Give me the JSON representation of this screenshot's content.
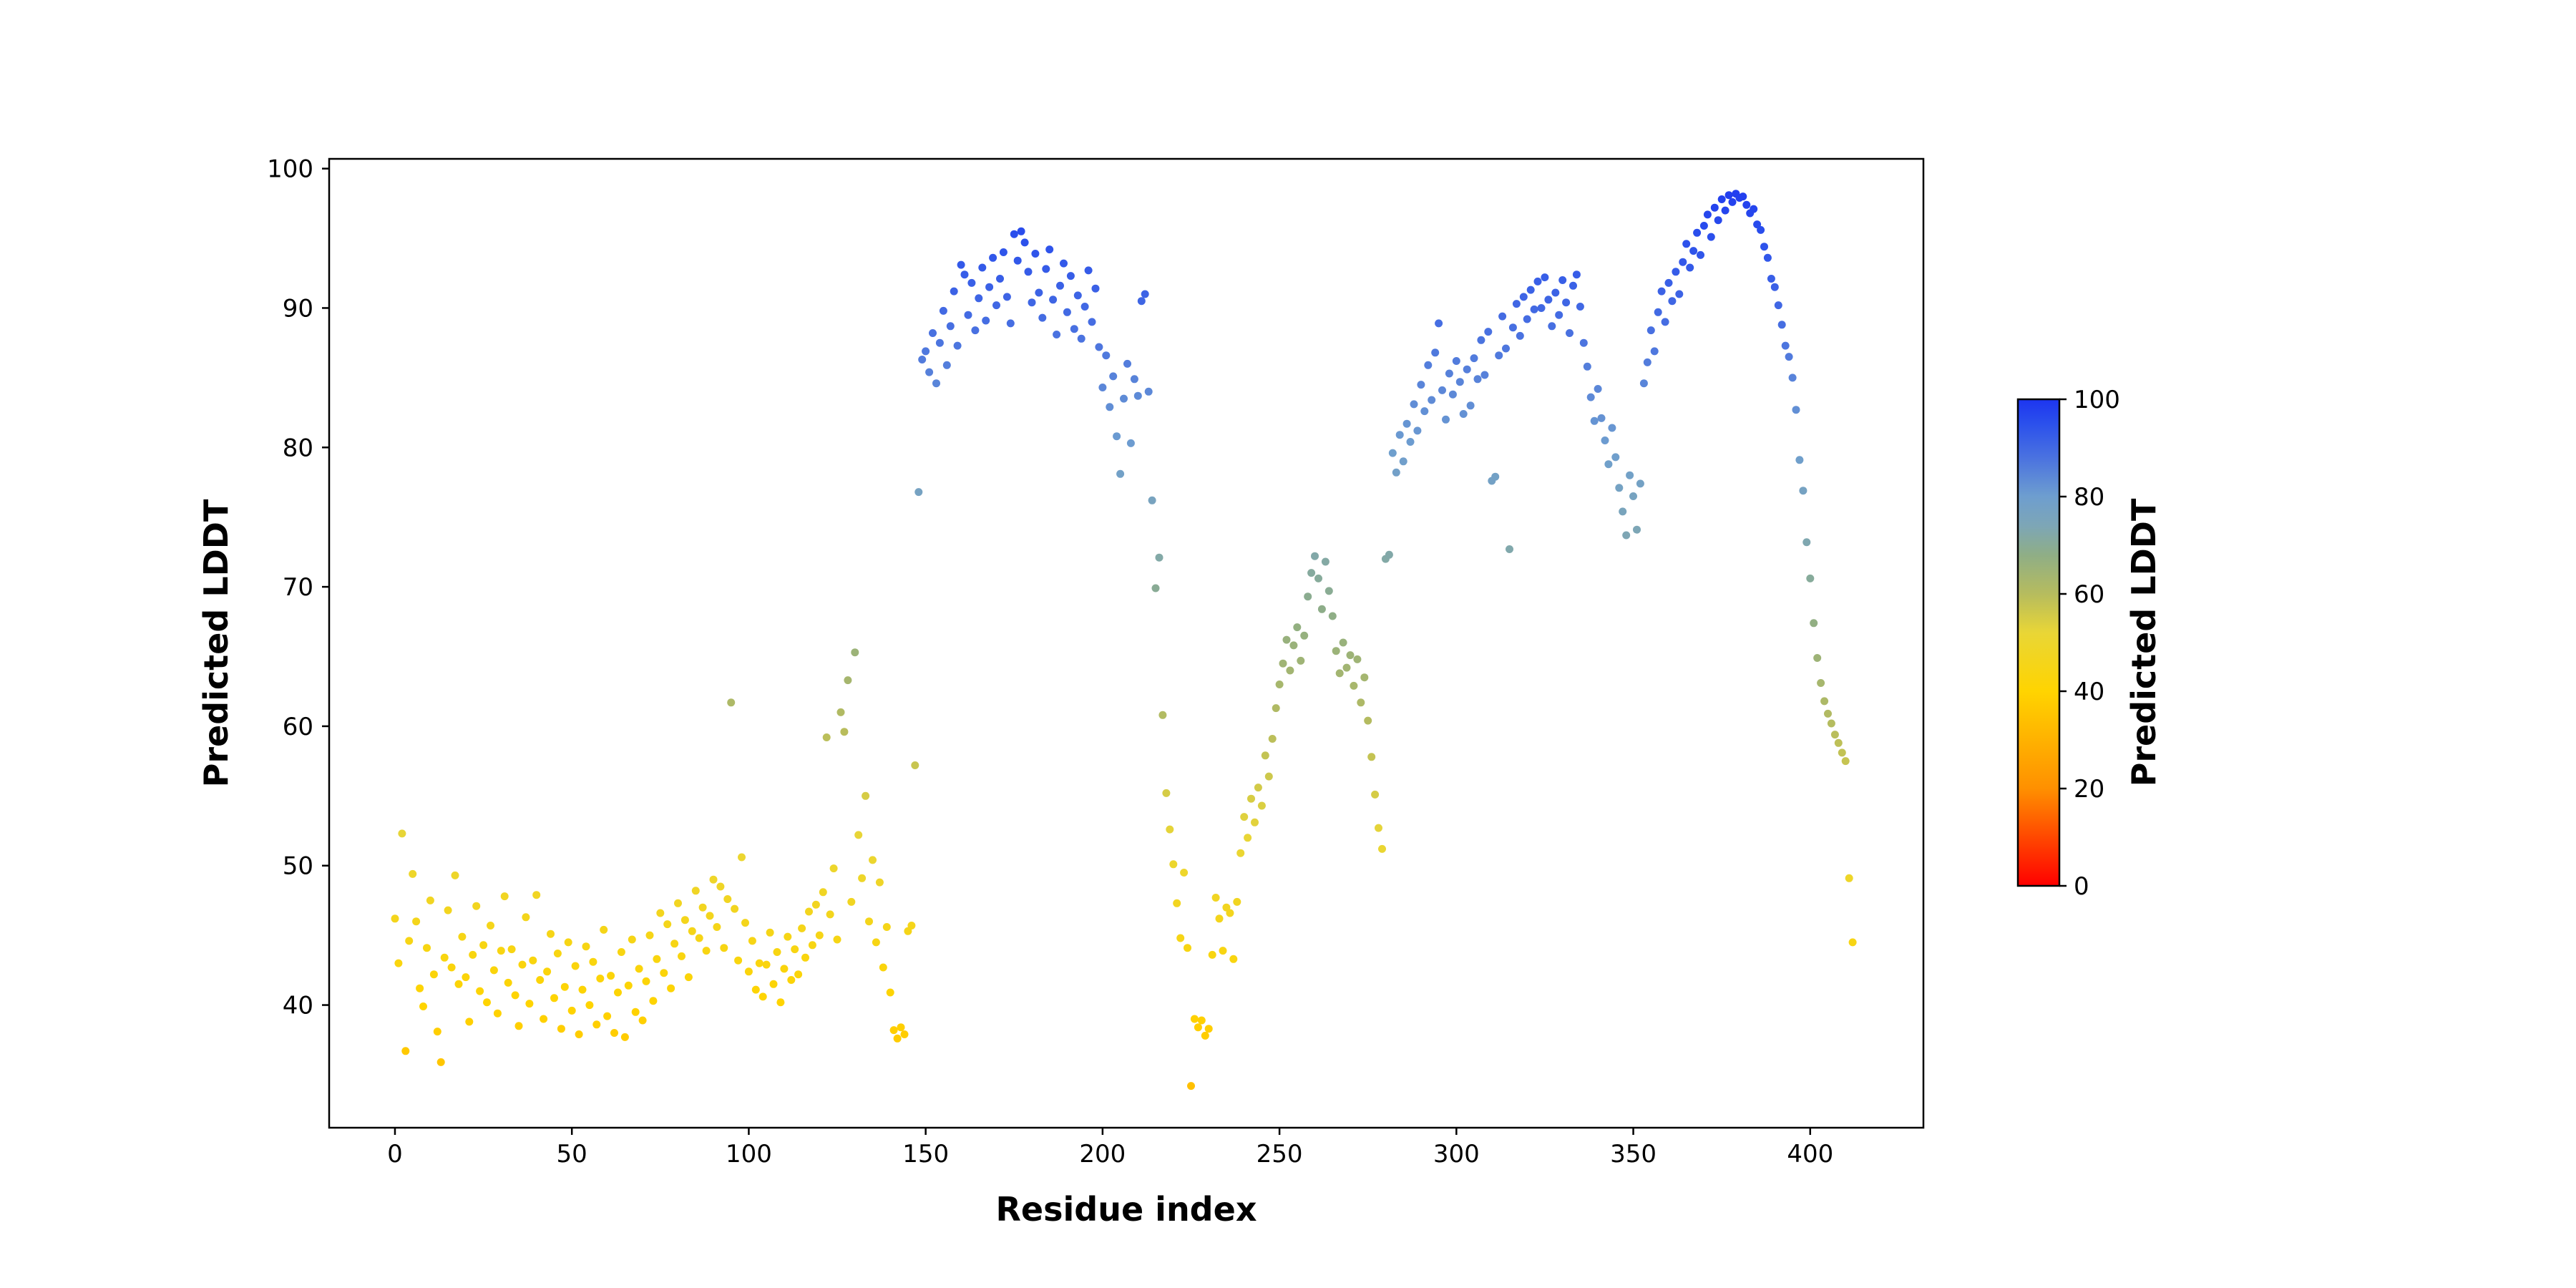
{
  "figure": {
    "background": "#ffffff"
  },
  "chart_data": {
    "type": "scatter",
    "title": "",
    "xlabel": "Residue index",
    "ylabel": "Predicted LDDT",
    "xlim": [
      -18.6,
      432.0
    ],
    "ylim": [
      31.2,
      100.7
    ],
    "xticks": [
      0,
      50,
      100,
      150,
      200,
      250,
      300,
      350,
      400
    ],
    "yticks": [
      40,
      50,
      60,
      70,
      80,
      90,
      100
    ],
    "grid": false,
    "legend": "none",
    "marker_radius": 5.5,
    "colorbar": {
      "label": "Predicted LDDT",
      "min": 0,
      "max": 100,
      "ticks": [
        0,
        20,
        40,
        60,
        80,
        100
      ],
      "stops": [
        [
          0,
          "#ff0000"
        ],
        [
          20,
          "#ff9000"
        ],
        [
          40,
          "#ffd400"
        ],
        [
          52,
          "#e9d636"
        ],
        [
          60,
          "#b6bc5e"
        ],
        [
          68,
          "#8fae86"
        ],
        [
          74,
          "#7da6b6"
        ],
        [
          80,
          "#6e9ecf"
        ],
        [
          88,
          "#4a72e0"
        ],
        [
          95,
          "#2b50ec"
        ],
        [
          100,
          "#1d35f0"
        ]
      ]
    },
    "points": [
      [
        0,
        46.2
      ],
      [
        1,
        43.0
      ],
      [
        2,
        52.3
      ],
      [
        3,
        36.7
      ],
      [
        4,
        44.6
      ],
      [
        5,
        49.4
      ],
      [
        6,
        46.0
      ],
      [
        7,
        41.2
      ],
      [
        8,
        39.9
      ],
      [
        9,
        44.1
      ],
      [
        10,
        47.5
      ],
      [
        11,
        42.2
      ],
      [
        12,
        38.1
      ],
      [
        13,
        35.9
      ],
      [
        14,
        43.4
      ],
      [
        15,
        46.8
      ],
      [
        16,
        42.7
      ],
      [
        17,
        49.3
      ],
      [
        18,
        41.5
      ],
      [
        19,
        44.9
      ],
      [
        20,
        42.0
      ],
      [
        21,
        38.8
      ],
      [
        22,
        43.6
      ],
      [
        23,
        47.1
      ],
      [
        24,
        41.0
      ],
      [
        25,
        44.3
      ],
      [
        26,
        40.2
      ],
      [
        27,
        45.7
      ],
      [
        28,
        42.5
      ],
      [
        29,
        39.4
      ],
      [
        30,
        43.9
      ],
      [
        31,
        47.8
      ],
      [
        32,
        41.6
      ],
      [
        33,
        44.0
      ],
      [
        34,
        40.7
      ],
      [
        35,
        38.5
      ],
      [
        36,
        42.9
      ],
      [
        37,
        46.3
      ],
      [
        38,
        40.1
      ],
      [
        39,
        43.2
      ],
      [
        40,
        47.9
      ],
      [
        41,
        41.8
      ],
      [
        42,
        39.0
      ],
      [
        43,
        42.4
      ],
      [
        44,
        45.1
      ],
      [
        45,
        40.5
      ],
      [
        46,
        43.7
      ],
      [
        47,
        38.3
      ],
      [
        48,
        41.3
      ],
      [
        49,
        44.5
      ],
      [
        50,
        39.6
      ],
      [
        51,
        42.8
      ],
      [
        52,
        37.9
      ],
      [
        53,
        41.1
      ],
      [
        54,
        44.2
      ],
      [
        55,
        40.0
      ],
      [
        56,
        43.1
      ],
      [
        57,
        38.6
      ],
      [
        58,
        41.9
      ],
      [
        59,
        45.4
      ],
      [
        60,
        39.2
      ],
      [
        61,
        42.1
      ],
      [
        62,
        38.0
      ],
      [
        63,
        40.9
      ],
      [
        64,
        43.8
      ],
      [
        65,
        37.7
      ],
      [
        66,
        41.4
      ],
      [
        67,
        44.7
      ],
      [
        68,
        39.5
      ],
      [
        69,
        42.6
      ],
      [
        70,
        38.9
      ],
      [
        71,
        41.7
      ],
      [
        72,
        45.0
      ],
      [
        73,
        40.3
      ],
      [
        74,
        43.3
      ],
      [
        75,
        46.6
      ],
      [
        76,
        42.3
      ],
      [
        77,
        45.8
      ],
      [
        78,
        41.2
      ],
      [
        79,
        44.4
      ],
      [
        80,
        47.3
      ],
      [
        81,
        43.5
      ],
      [
        82,
        46.1
      ],
      [
        83,
        42.0
      ],
      [
        84,
        45.3
      ],
      [
        85,
        48.2
      ],
      [
        86,
        44.8
      ],
      [
        87,
        47.0
      ],
      [
        88,
        43.9
      ],
      [
        89,
        46.4
      ],
      [
        90,
        49.0
      ],
      [
        91,
        45.6
      ],
      [
        92,
        48.5
      ],
      [
        93,
        44.1
      ],
      [
        94,
        47.6
      ],
      [
        95,
        61.7
      ],
      [
        96,
        46.9
      ],
      [
        97,
        43.2
      ],
      [
        98,
        50.6
      ],
      [
        99,
        45.9
      ],
      [
        100,
        42.4
      ],
      [
        101,
        44.6
      ],
      [
        102,
        41.1
      ],
      [
        103,
        43.0
      ],
      [
        104,
        40.6
      ],
      [
        105,
        42.9
      ],
      [
        106,
        45.2
      ],
      [
        107,
        41.5
      ],
      [
        108,
        43.8
      ],
      [
        109,
        40.2
      ],
      [
        110,
        42.6
      ],
      [
        111,
        44.9
      ],
      [
        112,
        41.8
      ],
      [
        113,
        44.0
      ],
      [
        114,
        42.2
      ],
      [
        115,
        45.5
      ],
      [
        116,
        43.4
      ],
      [
        117,
        46.7
      ],
      [
        118,
        44.3
      ],
      [
        119,
        47.2
      ],
      [
        120,
        45.0
      ],
      [
        121,
        48.1
      ],
      [
        122,
        59.2
      ],
      [
        123,
        46.5
      ],
      [
        124,
        49.8
      ],
      [
        125,
        44.7
      ],
      [
        126,
        61.0
      ],
      [
        127,
        59.6
      ],
      [
        128,
        63.3
      ],
      [
        129,
        47.4
      ],
      [
        130,
        65.3
      ],
      [
        131,
        52.2
      ],
      [
        132,
        49.1
      ],
      [
        133,
        55.0
      ],
      [
        134,
        46.0
      ],
      [
        135,
        50.4
      ],
      [
        136,
        44.5
      ],
      [
        137,
        48.8
      ],
      [
        138,
        42.7
      ],
      [
        139,
        45.6
      ],
      [
        140,
        40.9
      ],
      [
        141,
        38.2
      ],
      [
        142,
        37.6
      ],
      [
        143,
        38.4
      ],
      [
        144,
        37.9
      ],
      [
        145,
        45.3
      ],
      [
        146,
        45.7
      ],
      [
        147,
        57.2
      ],
      [
        148,
        76.8
      ],
      [
        149,
        86.3
      ],
      [
        150,
        86.9
      ],
      [
        151,
        85.4
      ],
      [
        152,
        88.2
      ],
      [
        153,
        84.6
      ],
      [
        154,
        87.5
      ],
      [
        155,
        89.8
      ],
      [
        156,
        85.9
      ],
      [
        157,
        88.7
      ],
      [
        158,
        91.2
      ],
      [
        159,
        87.3
      ],
      [
        160,
        93.1
      ],
      [
        161,
        92.4
      ],
      [
        162,
        89.5
      ],
      [
        163,
        91.8
      ],
      [
        164,
        88.4
      ],
      [
        165,
        90.7
      ],
      [
        166,
        92.9
      ],
      [
        167,
        89.1
      ],
      [
        168,
        91.5
      ],
      [
        169,
        93.6
      ],
      [
        170,
        90.2
      ],
      [
        171,
        92.1
      ],
      [
        172,
        94.0
      ],
      [
        173,
        90.8
      ],
      [
        174,
        88.9
      ],
      [
        175,
        95.3
      ],
      [
        176,
        93.4
      ],
      [
        177,
        95.5
      ],
      [
        178,
        94.7
      ],
      [
        179,
        92.6
      ],
      [
        180,
        90.4
      ],
      [
        181,
        93.9
      ],
      [
        182,
        91.1
      ],
      [
        183,
        89.3
      ],
      [
        184,
        92.8
      ],
      [
        185,
        94.2
      ],
      [
        186,
        90.6
      ],
      [
        187,
        88.1
      ],
      [
        188,
        91.6
      ],
      [
        189,
        93.2
      ],
      [
        190,
        89.7
      ],
      [
        191,
        92.3
      ],
      [
        192,
        88.5
      ],
      [
        193,
        90.9
      ],
      [
        194,
        87.8
      ],
      [
        195,
        90.1
      ],
      [
        196,
        92.7
      ],
      [
        197,
        89.0
      ],
      [
        198,
        91.4
      ],
      [
        199,
        87.2
      ],
      [
        200,
        84.3
      ],
      [
        201,
        86.6
      ],
      [
        202,
        82.9
      ],
      [
        203,
        85.1
      ],
      [
        204,
        80.8
      ],
      [
        205,
        78.1
      ],
      [
        206,
        83.5
      ],
      [
        207,
        86.0
      ],
      [
        208,
        80.3
      ],
      [
        209,
        84.9
      ],
      [
        210,
        83.7
      ],
      [
        211,
        90.5
      ],
      [
        212,
        91.0
      ],
      [
        213,
        84.0
      ],
      [
        214,
        76.2
      ],
      [
        215,
        69.9
      ],
      [
        216,
        72.1
      ],
      [
        217,
        60.8
      ],
      [
        218,
        55.2
      ],
      [
        219,
        52.6
      ],
      [
        220,
        50.1
      ],
      [
        221,
        47.3
      ],
      [
        222,
        44.8
      ],
      [
        223,
        49.5
      ],
      [
        224,
        44.1
      ],
      [
        225,
        34.2
      ],
      [
        226,
        39.0
      ],
      [
        227,
        38.4
      ],
      [
        228,
        38.9
      ],
      [
        229,
        37.8
      ],
      [
        230,
        38.3
      ],
      [
        231,
        43.6
      ],
      [
        232,
        47.7
      ],
      [
        233,
        46.2
      ],
      [
        234,
        43.9
      ],
      [
        235,
        47.0
      ],
      [
        236,
        46.6
      ],
      [
        237,
        43.3
      ],
      [
        238,
        47.4
      ],
      [
        239,
        50.9
      ],
      [
        240,
        53.5
      ],
      [
        241,
        52.0
      ],
      [
        242,
        54.8
      ],
      [
        243,
        53.1
      ],
      [
        244,
        55.6
      ],
      [
        245,
        54.3
      ],
      [
        246,
        57.9
      ],
      [
        247,
        56.4
      ],
      [
        248,
        59.1
      ],
      [
        249,
        61.3
      ],
      [
        250,
        63.0
      ],
      [
        251,
        64.5
      ],
      [
        252,
        66.2
      ],
      [
        253,
        64.0
      ],
      [
        254,
        65.8
      ],
      [
        255,
        67.1
      ],
      [
        256,
        64.7
      ],
      [
        257,
        66.5
      ],
      [
        258,
        69.3
      ],
      [
        259,
        71.0
      ],
      [
        260,
        72.2
      ],
      [
        261,
        70.6
      ],
      [
        262,
        68.4
      ],
      [
        263,
        71.8
      ],
      [
        264,
        69.7
      ],
      [
        265,
        67.9
      ],
      [
        266,
        65.4
      ],
      [
        267,
        63.8
      ],
      [
        268,
        66.0
      ],
      [
        269,
        64.2
      ],
      [
        270,
        65.1
      ],
      [
        271,
        62.9
      ],
      [
        272,
        64.8
      ],
      [
        273,
        61.7
      ],
      [
        274,
        63.5
      ],
      [
        275,
        60.4
      ],
      [
        276,
        57.8
      ],
      [
        277,
        55.1
      ],
      [
        278,
        52.7
      ],
      [
        279,
        51.2
      ],
      [
        280,
        72.0
      ],
      [
        281,
        72.3
      ],
      [
        282,
        79.6
      ],
      [
        283,
        78.2
      ],
      [
        284,
        80.9
      ],
      [
        285,
        79.0
      ],
      [
        286,
        81.7
      ],
      [
        287,
        80.4
      ],
      [
        288,
        83.1
      ],
      [
        289,
        81.2
      ],
      [
        290,
        84.5
      ],
      [
        291,
        82.6
      ],
      [
        292,
        85.9
      ],
      [
        293,
        83.4
      ],
      [
        294,
        86.8
      ],
      [
        295,
        88.9
      ],
      [
        296,
        84.1
      ],
      [
        297,
        82.0
      ],
      [
        298,
        85.3
      ],
      [
        299,
        83.8
      ],
      [
        300,
        86.2
      ],
      [
        301,
        84.7
      ],
      [
        302,
        82.4
      ],
      [
        303,
        85.6
      ],
      [
        304,
        83.0
      ],
      [
        305,
        86.4
      ],
      [
        306,
        84.9
      ],
      [
        307,
        87.7
      ],
      [
        308,
        85.2
      ],
      [
        309,
        88.3
      ],
      [
        310,
        77.6
      ],
      [
        311,
        77.9
      ],
      [
        312,
        86.6
      ],
      [
        313,
        89.4
      ],
      [
        314,
        87.1
      ],
      [
        315,
        72.7
      ],
      [
        316,
        88.6
      ],
      [
        317,
        90.3
      ],
      [
        318,
        88.0
      ],
      [
        319,
        90.8
      ],
      [
        320,
        89.2
      ],
      [
        321,
        91.3
      ],
      [
        322,
        89.9
      ],
      [
        323,
        91.9
      ],
      [
        324,
        90.0
      ],
      [
        325,
        92.2
      ],
      [
        326,
        90.6
      ],
      [
        327,
        88.7
      ],
      [
        328,
        91.1
      ],
      [
        329,
        89.5
      ],
      [
        330,
        92.0
      ],
      [
        331,
        90.4
      ],
      [
        332,
        88.2
      ],
      [
        333,
        91.6
      ],
      [
        334,
        92.4
      ],
      [
        335,
        90.1
      ],
      [
        336,
        87.5
      ],
      [
        337,
        85.8
      ],
      [
        338,
        83.6
      ],
      [
        339,
        81.9
      ],
      [
        340,
        84.2
      ],
      [
        341,
        82.1
      ],
      [
        342,
        80.5
      ],
      [
        343,
        78.8
      ],
      [
        344,
        81.4
      ],
      [
        345,
        79.3
      ],
      [
        346,
        77.1
      ],
      [
        347,
        75.4
      ],
      [
        348,
        73.7
      ],
      [
        349,
        78.0
      ],
      [
        350,
        76.5
      ],
      [
        351,
        74.1
      ],
      [
        352,
        77.4
      ],
      [
        353,
        84.6
      ],
      [
        354,
        86.1
      ],
      [
        355,
        88.4
      ],
      [
        356,
        86.9
      ],
      [
        357,
        89.7
      ],
      [
        358,
        91.2
      ],
      [
        359,
        89.0
      ],
      [
        360,
        91.8
      ],
      [
        361,
        90.5
      ],
      [
        362,
        92.6
      ],
      [
        363,
        91.0
      ],
      [
        364,
        93.3
      ],
      [
        365,
        94.6
      ],
      [
        366,
        92.9
      ],
      [
        367,
        94.1
      ],
      [
        368,
        95.4
      ],
      [
        369,
        93.8
      ],
      [
        370,
        95.9
      ],
      [
        371,
        96.7
      ],
      [
        372,
        95.1
      ],
      [
        373,
        97.2
      ],
      [
        374,
        96.3
      ],
      [
        375,
        97.8
      ],
      [
        376,
        97.0
      ],
      [
        377,
        98.1
      ],
      [
        378,
        97.6
      ],
      [
        379,
        98.2
      ],
      [
        380,
        97.9
      ],
      [
        381,
        98.0
      ],
      [
        382,
        97.4
      ],
      [
        383,
        96.8
      ],
      [
        384,
        97.1
      ],
      [
        385,
        96.0
      ],
      [
        386,
        95.6
      ],
      [
        387,
        94.4
      ],
      [
        388,
        93.6
      ],
      [
        389,
        92.1
      ],
      [
        390,
        91.5
      ],
      [
        391,
        90.2
      ],
      [
        392,
        88.8
      ],
      [
        393,
        87.3
      ],
      [
        394,
        86.5
      ],
      [
        395,
        85.0
      ],
      [
        396,
        82.7
      ],
      [
        397,
        79.1
      ],
      [
        398,
        76.9
      ],
      [
        399,
        73.2
      ],
      [
        400,
        70.6
      ],
      [
        401,
        67.4
      ],
      [
        402,
        64.9
      ],
      [
        403,
        63.1
      ],
      [
        404,
        61.8
      ],
      [
        405,
        60.9
      ],
      [
        406,
        60.2
      ],
      [
        407,
        59.4
      ],
      [
        408,
        58.8
      ],
      [
        409,
        58.1
      ],
      [
        410,
        57.5
      ],
      [
        411,
        49.1
      ],
      [
        412,
        44.5
      ]
    ]
  }
}
